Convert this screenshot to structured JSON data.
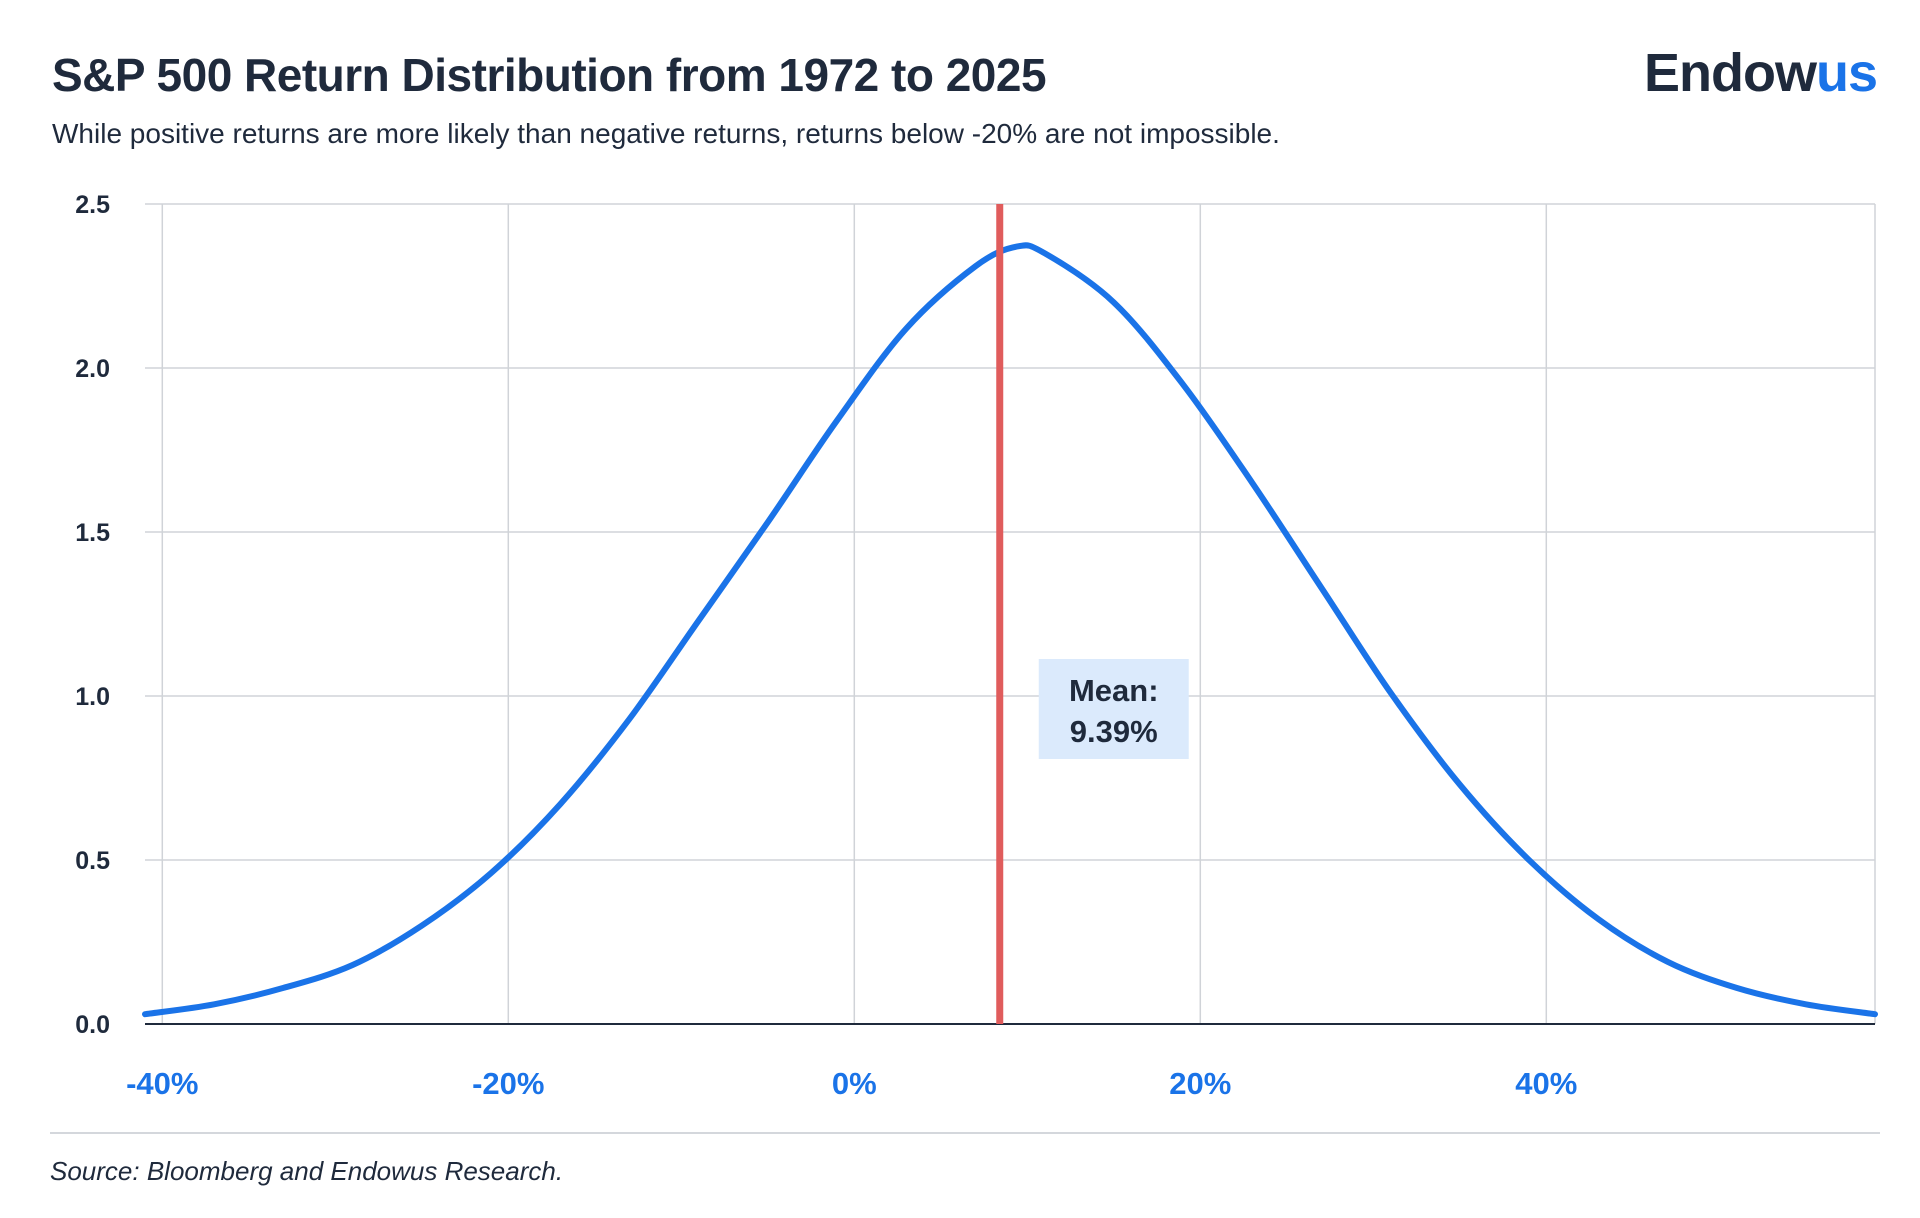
{
  "header": {
    "title": "S&P 500 Return Distribution from 1972 to 2025",
    "subtitle": "While positive returns are more likely than negative returns, returns below -20% are not impossible.",
    "logo_text_dark": "Endow",
    "logo_text_accent": "us"
  },
  "footer": {
    "source": "Source: Bloomberg and Endowus Research."
  },
  "colors": {
    "curve": "#1a73e8",
    "mean_line": "#e05c5c",
    "annotation_bg": "#dbeafc",
    "grid": "#d0d3d8",
    "text": "#1f2a3c",
    "x_tick_text": "#1a73e8"
  },
  "chart_data": {
    "type": "line",
    "title": "S&P 500 Return Distribution from 1972 to 2025",
    "subtitle": "While positive returns are more likely than negative returns, returns below -20% are not impossible.",
    "xlabel": "",
    "ylabel": "",
    "xlim": [
      -41,
      59
    ],
    "ylim": [
      0,
      2.5
    ],
    "x_ticks": [
      -40,
      -20,
      0,
      20,
      40
    ],
    "x_tick_labels": [
      "-40%",
      "-20%",
      "0%",
      "20%",
      "40%"
    ],
    "y_ticks": [
      0,
      0.5,
      1,
      1.5,
      2,
      2.5
    ],
    "y_tick_labels": [
      "0.0",
      "0.5",
      "1.0",
      "1.5",
      "2.0",
      "2.5"
    ],
    "grid": true,
    "series": [
      {
        "x": [
          -41,
          -37,
          -33,
          -29,
          -25,
          -21,
          -17,
          -13,
          -9,
          -5,
          -1,
          3,
          7,
          9.39,
          11,
          15,
          19,
          23,
          27,
          31,
          35,
          39,
          43,
          47,
          51,
          55,
          59
        ],
        "y": [
          0.03,
          0.06,
          0.11,
          0.18,
          0.3,
          0.46,
          0.67,
          0.93,
          1.23,
          1.53,
          1.84,
          2.12,
          2.31,
          2.37,
          2.35,
          2.2,
          1.95,
          1.65,
          1.33,
          1.01,
          0.73,
          0.5,
          0.32,
          0.19,
          0.11,
          0.06,
          0.03
        ]
      }
    ],
    "annotations": [
      {
        "text_line1": "Mean:",
        "text_line2": "9.39%",
        "x": 9.39
      }
    ]
  }
}
